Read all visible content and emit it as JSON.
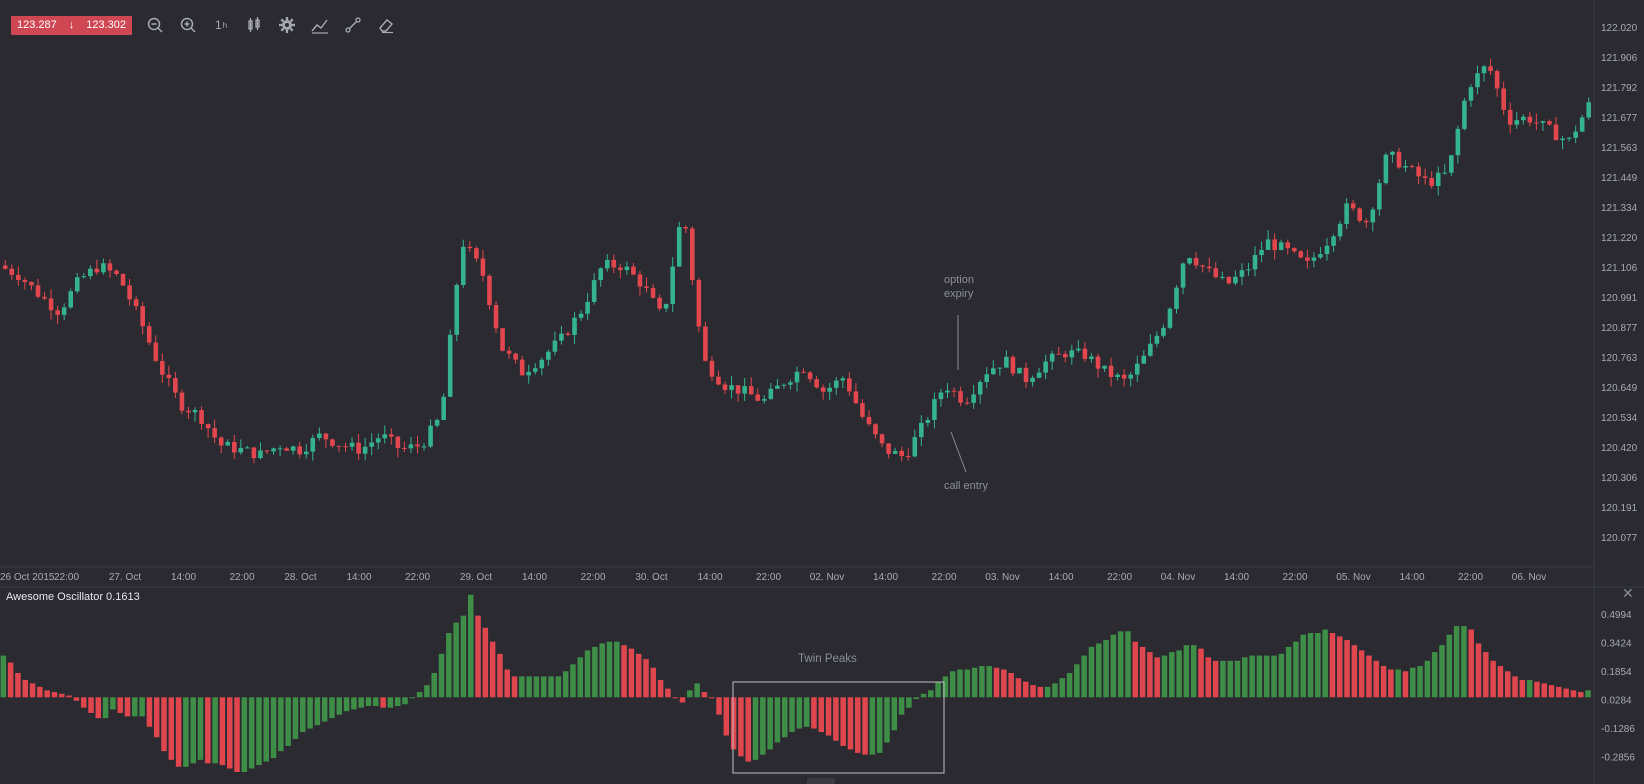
{
  "toolbar": {
    "price_sell": "123.287",
    "price_buy": "123.302",
    "timeframe_label": "1",
    "timeframe_unit": "h",
    "tools": [
      "zoom-out-icon",
      "zoom-in-icon",
      "timeframe",
      "candles-icon",
      "settings-icon",
      "indicators-icon",
      "drawing-icon",
      "eraser-icon"
    ]
  },
  "colors": {
    "background": "#2a2a30",
    "bull": "#35b38e",
    "bear": "#e2474f",
    "osc_up": "#3e8e47",
    "osc_down": "#e0464e",
    "text": "#a9a9b0"
  },
  "annotations": {
    "option_expiry": "option\nexpiry",
    "call_entry": "call entry",
    "twin_peaks": "Twin Peaks"
  },
  "chart_data": [
    {
      "type": "candlestick",
      "title": "",
      "y_ticks": [
        "122.020",
        "121.906",
        "121.792",
        "121.677",
        "121.563",
        "121.449",
        "121.334",
        "121.220",
        "121.106",
        "120.991",
        "120.877",
        "120.763",
        "120.649",
        "120.534",
        "120.420",
        "120.306",
        "120.191",
        "120.077"
      ],
      "ylim": [
        120.0,
        122.05
      ],
      "x_ticks": [
        "26 Oct 2015",
        "22:00",
        "27. Oct",
        "14:00",
        "22:00",
        "28. Oct",
        "14:00",
        "22:00",
        "29. Oct",
        "14:00",
        "22:00",
        "30. Oct",
        "14:00",
        "22:00",
        "02. Nov",
        "14:00",
        "22:00",
        "03. Nov",
        "14:00",
        "22:00",
        "04. Nov",
        "14:00",
        "22:00",
        "05. Nov",
        "14:00",
        "22:00",
        "06. Nov"
      ],
      "anchors": [
        121.12,
        121.08,
        121.0,
        120.93,
        121.06,
        121.12,
        121.07,
        120.9,
        120.7,
        120.55,
        120.5,
        120.38,
        120.36,
        120.34,
        120.38,
        120.36,
        120.42,
        120.38,
        120.36,
        120.42,
        120.36,
        120.38,
        120.5,
        121.22,
        121.1,
        120.78,
        120.68,
        120.74,
        120.82,
        120.94,
        121.12,
        121.12,
        121.04,
        120.9,
        121.36,
        120.73,
        120.63,
        120.6,
        120.56,
        120.64,
        120.7,
        120.6,
        120.66,
        120.48,
        120.36,
        120.33,
        120.47,
        120.63,
        120.56,
        120.68,
        120.73,
        120.65,
        120.72,
        120.76,
        120.75,
        120.68,
        120.64,
        120.75,
        120.9,
        121.18,
        121.1,
        121.04,
        121.1,
        121.22,
        121.18,
        121.12,
        121.22,
        121.36,
        121.3,
        121.58,
        121.52,
        121.46,
        121.5,
        121.86,
        121.95,
        121.72,
        121.73,
        121.68,
        121.63,
        121.78
      ],
      "candle_count": 243
    },
    {
      "type": "bar",
      "title": "Awesome Oscillator 0.1613",
      "y_ticks": [
        "0.4994",
        "0.3424",
        "0.1854",
        "0.0284",
        "-0.1286",
        "-0.2856"
      ],
      "ylim": [
        -0.43,
        0.56
      ],
      "values": [
        0.24,
        0.2,
        0.14,
        0.1,
        0.08,
        0.06,
        0.04,
        0.03,
        0.02,
        0.01,
        -0.02,
        -0.06,
        -0.09,
        -0.12,
        -0.12,
        -0.07,
        -0.09,
        -0.11,
        -0.11,
        -0.11,
        -0.17,
        -0.23,
        -0.31,
        -0.36,
        -0.4,
        -0.4,
        -0.38,
        -0.36,
        -0.38,
        -0.38,
        -0.39,
        -0.41,
        -0.43,
        -0.43,
        -0.41,
        -0.39,
        -0.37,
        -0.35,
        -0.31,
        -0.28,
        -0.24,
        -0.2,
        -0.18,
        -0.16,
        -0.14,
        -0.12,
        -0.1,
        -0.08,
        -0.07,
        -0.06,
        -0.05,
        -0.05,
        -0.06,
        -0.06,
        -0.05,
        -0.04,
        0.0,
        0.03,
        0.07,
        0.14,
        0.25,
        0.37,
        0.43,
        0.47,
        0.59,
        0.47,
        0.4,
        0.32,
        0.25,
        0.16,
        0.12,
        0.12,
        0.12,
        0.12,
        0.12,
        0.12,
        0.12,
        0.15,
        0.19,
        0.23,
        0.27,
        0.29,
        0.31,
        0.32,
        0.32,
        0.3,
        0.28,
        0.25,
        0.22,
        0.17,
        0.1,
        0.05,
        0.0,
        -0.03,
        0.04,
        0.08,
        0.03,
        0.0,
        -0.1,
        -0.22,
        -0.3,
        -0.34,
        -0.37,
        -0.36,
        -0.33,
        -0.3,
        -0.26,
        -0.23,
        -0.2,
        -0.18,
        -0.17,
        -0.18,
        -0.2,
        -0.22,
        -0.25,
        -0.28,
        -0.3,
        -0.32,
        -0.33,
        -0.33,
        -0.32,
        -0.26,
        -0.19,
        -0.1,
        -0.06,
        -0.01,
        0.02,
        0.04,
        0.09,
        0.12,
        0.15,
        0.16,
        0.16,
        0.17,
        0.18,
        0.18,
        0.17,
        0.16,
        0.14,
        0.11,
        0.09,
        0.07,
        0.06,
        0.06,
        0.08,
        0.11,
        0.14,
        0.19,
        0.24,
        0.29,
        0.31,
        0.33,
        0.36,
        0.38,
        0.38,
        0.32,
        0.29,
        0.26,
        0.23,
        0.24,
        0.26,
        0.27,
        0.3,
        0.3,
        0.28,
        0.23,
        0.21,
        0.21,
        0.21,
        0.21,
        0.23,
        0.24,
        0.24,
        0.24,
        0.24,
        0.25,
        0.29,
        0.32,
        0.36,
        0.37,
        0.37,
        0.39,
        0.37,
        0.35,
        0.33,
        0.3,
        0.27,
        0.24,
        0.21,
        0.18,
        0.16,
        0.16,
        0.15,
        0.17,
        0.18,
        0.21,
        0.26,
        0.3,
        0.36,
        0.41,
        0.41,
        0.39,
        0.31,
        0.26,
        0.21,
        0.18,
        0.15,
        0.12,
        0.1,
        0.1,
        0.09,
        0.08,
        0.07,
        0.06,
        0.05,
        0.04,
        0.03,
        0.04
      ]
    }
  ]
}
